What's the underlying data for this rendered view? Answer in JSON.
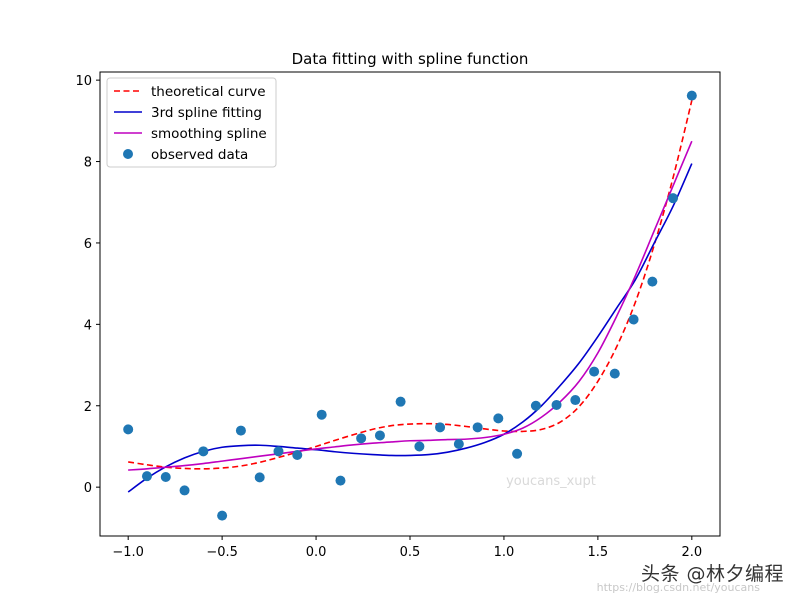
{
  "chart_data": {
    "type": "line",
    "title": "Data fitting with spline function",
    "xlabel": "",
    "ylabel": "",
    "xlim": [
      -1.15,
      2.15
    ],
    "ylim": [
      -1.2,
      10.2
    ],
    "xticks": [
      -1.0,
      -0.5,
      0.0,
      0.5,
      1.0,
      1.5,
      2.0
    ],
    "xtick_labels": [
      "−1.0",
      "−0.5",
      "0.0",
      "0.5",
      "1.0",
      "1.5",
      "2.0"
    ],
    "yticks": [
      0,
      2,
      4,
      6,
      8,
      10
    ],
    "ytick_labels": [
      "0",
      "2",
      "4",
      "6",
      "8",
      "10"
    ],
    "grid": false,
    "legend_position": "upper-left",
    "series": [
      {
        "name": "theoretical curve",
        "style": "dashed",
        "color": "#ff0000",
        "x": [
          -1.0,
          -0.9,
          -0.8,
          -0.7,
          -0.6,
          -0.5,
          -0.4,
          -0.3,
          -0.2,
          -0.1,
          0.0,
          0.1,
          0.2,
          0.3,
          0.4,
          0.5,
          0.6,
          0.7,
          0.8,
          0.9,
          1.0,
          1.1,
          1.2,
          1.3,
          1.4,
          1.5,
          1.6,
          1.7,
          1.8,
          1.9,
          2.0
        ],
        "y": [
          0.62,
          0.55,
          0.49,
          0.46,
          0.45,
          0.47,
          0.52,
          0.61,
          0.73,
          0.86,
          1.0,
          1.15,
          1.29,
          1.42,
          1.51,
          1.55,
          1.56,
          1.54,
          1.49,
          1.43,
          1.38,
          1.37,
          1.42,
          1.6,
          1.98,
          2.6,
          3.45,
          4.55,
          5.95,
          7.6,
          9.5
        ]
      },
      {
        "name": "3rd spline fitting",
        "style": "solid",
        "color": "#0000cc",
        "x": [
          -1.0,
          -0.9,
          -0.8,
          -0.7,
          -0.6,
          -0.5,
          -0.4,
          -0.3,
          -0.2,
          -0.1,
          0.0,
          0.1,
          0.2,
          0.3,
          0.4,
          0.5,
          0.6,
          0.7,
          0.8,
          0.9,
          1.0,
          1.1,
          1.2,
          1.3,
          1.4,
          1.5,
          1.6,
          1.7,
          1.8,
          1.9,
          2.0
        ],
        "y": [
          -0.12,
          0.22,
          0.5,
          0.72,
          0.88,
          0.98,
          1.02,
          1.03,
          1.0,
          0.96,
          0.92,
          0.87,
          0.83,
          0.8,
          0.78,
          0.78,
          0.8,
          0.86,
          0.96,
          1.1,
          1.3,
          1.6,
          2.0,
          2.5,
          3.05,
          3.7,
          4.4,
          5.1,
          6.0,
          6.9,
          7.95
        ]
      },
      {
        "name": "smoothing spline",
        "style": "solid",
        "color": "#bf00bf",
        "x": [
          -1.0,
          -0.9,
          -0.8,
          -0.7,
          -0.6,
          -0.5,
          -0.4,
          -0.3,
          -0.2,
          -0.1,
          0.0,
          0.1,
          0.2,
          0.3,
          0.4,
          0.5,
          0.6,
          0.7,
          0.8,
          0.9,
          1.0,
          1.1,
          1.2,
          1.3,
          1.4,
          1.5,
          1.6,
          1.7,
          1.8,
          1.9,
          2.0
        ],
        "y": [
          0.42,
          0.45,
          0.49,
          0.53,
          0.58,
          0.64,
          0.7,
          0.76,
          0.82,
          0.88,
          0.94,
          0.99,
          1.04,
          1.08,
          1.11,
          1.14,
          1.15,
          1.17,
          1.18,
          1.22,
          1.3,
          1.45,
          1.72,
          2.1,
          2.6,
          3.3,
          4.2,
          5.2,
          6.3,
          7.4,
          8.5
        ]
      }
    ],
    "scatter": {
      "name": "observed data",
      "color": "#1f77b4",
      "x": [
        -1.0,
        -0.9,
        -0.8,
        -0.7,
        -0.6,
        -0.5,
        -0.4,
        -0.3,
        -0.2,
        -0.1,
        0.03,
        0.13,
        0.24,
        0.34,
        0.45,
        0.55,
        0.66,
        0.76,
        0.86,
        0.97,
        1.07,
        1.17,
        1.28,
        1.38,
        1.48,
        1.59,
        1.69,
        1.79,
        1.9,
        2.0
      ],
      "y": [
        1.42,
        0.27,
        0.25,
        -0.08,
        0.88,
        -0.7,
        1.39,
        0.24,
        0.88,
        0.79,
        1.78,
        0.16,
        1.2,
        1.27,
        2.1,
        1.0,
        1.47,
        1.06,
        1.47,
        1.69,
        0.82,
        2.0,
        2.02,
        2.14,
        2.84,
        2.79,
        4.12,
        5.05,
        7.1,
        9.62
      ]
    }
  },
  "watermarks": {
    "center_text": "youcans_xupt",
    "corner_text": "头条 @林夕编程",
    "url_text": "https://blog.csdn.net/youcans"
  }
}
